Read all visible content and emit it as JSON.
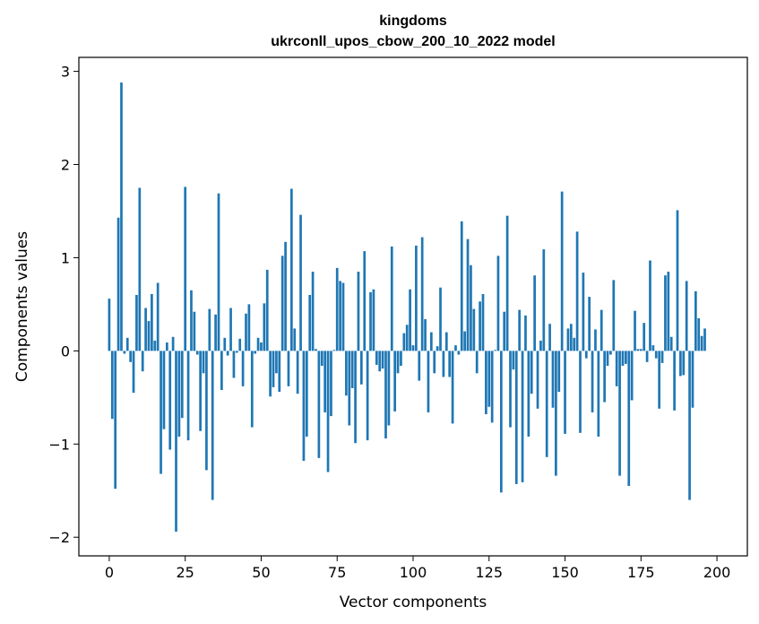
{
  "chart_data": {
    "type": "bar",
    "title": "kingdoms",
    "subtitle": "ukrconll_upos_cbow_200_10_2022 model",
    "xlabel": "Vector components",
    "ylabel": "Components values",
    "xlim": [
      -10,
      210
    ],
    "ylim": [
      -2.2,
      3.15
    ],
    "xticks": [
      0,
      25,
      50,
      75,
      100,
      125,
      150,
      175,
      200
    ],
    "yticks": [
      -2,
      -1,
      0,
      1,
      2,
      3
    ],
    "xtick_labels": [
      "0",
      "25",
      "50",
      "75",
      "100",
      "125",
      "150",
      "175",
      "200"
    ],
    "ytick_labels": [
      "−2",
      "−1",
      "0",
      "1",
      "2",
      "3"
    ],
    "bar_color": "#1f77b4",
    "values": [
      0.56,
      -0.73,
      -1.48,
      1.43,
      2.88,
      -0.03,
      0.14,
      -0.12,
      -0.45,
      0.6,
      1.75,
      -0.22,
      0.46,
      0.32,
      0.61,
      0.11,
      0.73,
      -1.32,
      -0.84,
      0.09,
      -1.06,
      0.15,
      -1.94,
      -0.92,
      -0.72,
      1.76,
      -0.96,
      0.65,
      0.42,
      -0.04,
      -0.86,
      -0.24,
      -1.28,
      0.45,
      -1.6,
      0.39,
      1.69,
      -0.42,
      0.14,
      -0.05,
      0.46,
      -0.29,
      -0.02,
      0.13,
      -0.38,
      0.4,
      0.5,
      -0.82,
      -0.03,
      0.14,
      0.09,
      0.51,
      0.87,
      -0.49,
      -0.39,
      -0.24,
      -0.44,
      1.02,
      1.17,
      -0.38,
      1.74,
      0.24,
      -0.46,
      1.46,
      -1.18,
      -0.92,
      0.6,
      0.85,
      0.02,
      -1.15,
      -0.16,
      -0.66,
      -1.3,
      -0.7,
      0.01,
      0.89,
      0.75,
      0.73,
      -0.48,
      -0.8,
      -0.4,
      -0.99,
      0.85,
      -0.36,
      1.07,
      -0.96,
      0.63,
      0.66,
      -0.15,
      -0.22,
      -0.19,
      -0.94,
      -0.8,
      1.12,
      -0.65,
      -0.24,
      -0.16,
      0.19,
      0.28,
      0.66,
      0.06,
      1.13,
      -0.32,
      1.22,
      0.34,
      -0.66,
      0.2,
      -0.24,
      0.05,
      0.68,
      -0.28,
      0.2,
      -0.28,
      -0.78,
      0.06,
      -0.04,
      1.39,
      0.21,
      1.2,
      0.92,
      0.45,
      -0.24,
      0.53,
      0.61,
      -0.68,
      -0.6,
      -0.77,
      0.01,
      1.02,
      -1.52,
      0.42,
      1.45,
      -0.82,
      -0.2,
      -1.43,
      0.44,
      -1.41,
      0.38,
      -0.92,
      -0.46,
      0.81,
      -0.62,
      0.11,
      1.09,
      -1.14,
      0.29,
      -0.61,
      -1.34,
      -0.44,
      1.71,
      -0.89,
      0.24,
      0.29,
      0.14,
      1.28,
      -0.88,
      0.84,
      -0.08,
      0.58,
      -0.66,
      0.23,
      -0.92,
      0.44,
      -0.55,
      -0.16,
      -0.04,
      0.76,
      -0.38,
      -1.34,
      -0.16,
      -0.14,
      -1.45,
      -0.53,
      0.43,
      0.02,
      0.02,
      0.3,
      -0.12,
      0.97,
      0.06,
      -0.08,
      -0.62,
      -0.13,
      0.81,
      0.85,
      0.15,
      -0.64,
      1.51,
      -0.27,
      -0.26,
      0.75,
      -1.6,
      -0.61,
      0.64,
      0.35,
      0.16,
      0.24
    ]
  }
}
